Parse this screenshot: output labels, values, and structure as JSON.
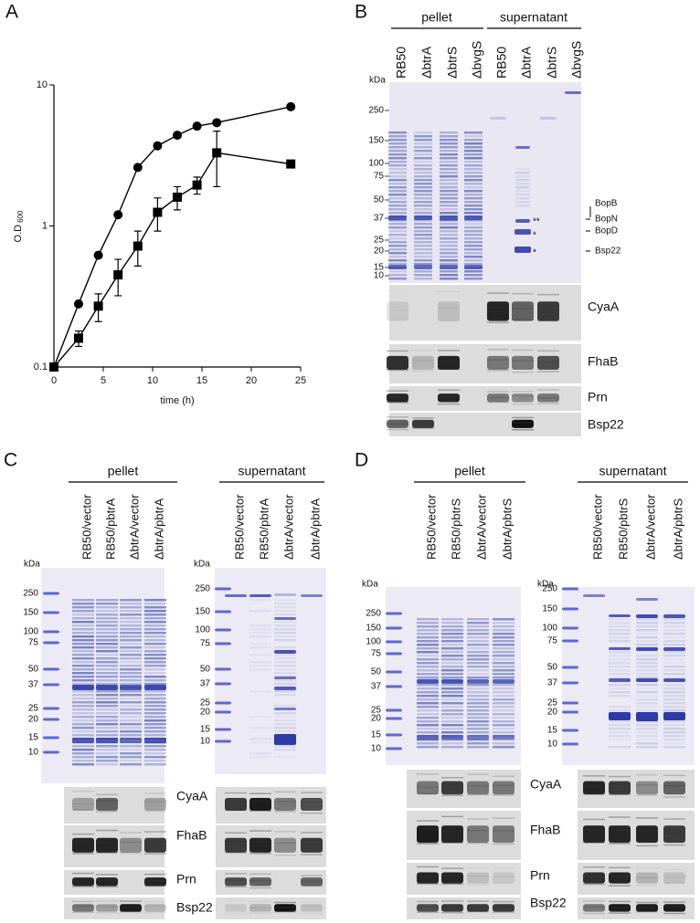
{
  "chart_data": {
    "type": "line",
    "panel_label": "A",
    "xlabel": "time (h)",
    "ylabel": "O.D",
    "ylabel_sub": "600",
    "x": [
      0,
      2.5,
      4.5,
      6.5,
      8.5,
      10.5,
      12.5,
      14.5,
      16.5,
      24
    ],
    "xlim": [
      0,
      25
    ],
    "xticks": [
      0,
      5,
      10,
      15,
      20,
      25
    ],
    "ylim": [
      0.1,
      10
    ],
    "yticks": [
      0.1,
      1,
      10
    ],
    "ylog": true,
    "series": [
      {
        "marker": "circle",
        "color": "#000000",
        "values": [
          0.1,
          0.28,
          0.62,
          1.2,
          2.6,
          3.7,
          4.4,
          5.1,
          5.4,
          7.0
        ]
      },
      {
        "marker": "square",
        "color": "#000000",
        "values": [
          0.1,
          0.16,
          0.27,
          0.45,
          0.72,
          1.25,
          1.6,
          1.95,
          3.3,
          2.75
        ],
        "errors": [
          0,
          0.02,
          0.06,
          0.13,
          0.2,
          0.33,
          0.3,
          0.27,
          1.4,
          0.1
        ]
      }
    ]
  },
  "panel_b": {
    "label": "B",
    "groups": [
      "pellet",
      "supernatant"
    ],
    "lanes": [
      "RB50",
      "ΔbtrA",
      "ΔbtrS",
      "ΔbvgS",
      "RB50",
      "ΔbtrA",
      "ΔbtrS",
      "ΔbvgS"
    ],
    "kda_label": "kDa",
    "markers": [
      250,
      150,
      100,
      75,
      50,
      37,
      25,
      20,
      15,
      10
    ],
    "annotations": [
      "BopB",
      "BopN",
      "BopD",
      "Bsp22"
    ],
    "asterisks": [
      "**",
      "*",
      "*"
    ],
    "blots": [
      "CyaA",
      "FhaB",
      "Prn",
      "Bsp22"
    ]
  },
  "panel_c": {
    "label": "C",
    "gels": [
      {
        "group": "pellet",
        "lanes": [
          "RB50/vector",
          "RB50/pbtrA",
          "ΔbtrA/vector",
          "ΔbtrA/pbtrA"
        ],
        "kda_label": "kDa",
        "markers": [
          250,
          150,
          100,
          75,
          50,
          37,
          25,
          20,
          15,
          10
        ]
      },
      {
        "group": "supernatant",
        "lanes": [
          "RB50/vector",
          "RB50/pbtrA",
          "ΔbtrA/vector",
          "ΔbtrA/pbtrA"
        ],
        "kda_label": "kDa",
        "markers": [
          250,
          150,
          100,
          75,
          50,
          37,
          25,
          20,
          15,
          10
        ]
      }
    ],
    "blots": [
      "CyaA",
      "FhaB",
      "Prn",
      "Bsp22"
    ]
  },
  "panel_d": {
    "label": "D",
    "gels": [
      {
        "group": "pellet",
        "lanes": [
          "RB50/vector",
          "RB50/pbtrS",
          "ΔbtrA/vector",
          "ΔbtrA/pbtrS"
        ],
        "kda_label": "kDa",
        "markers": [
          250,
          150,
          100,
          75,
          50,
          37,
          25,
          20,
          15,
          10
        ]
      },
      {
        "group": "supernatant",
        "lanes": [
          "RB50/vector",
          "RB50/pbtrS",
          "ΔbtrA/vector",
          "ΔbtrA/pbtrS"
        ],
        "kda_label": "kDa",
        "markers": [
          250,
          150,
          100,
          75,
          50,
          37,
          25,
          20,
          15,
          10
        ]
      }
    ],
    "blots": [
      "CyaA",
      "FhaB",
      "Prn",
      "Bsp22"
    ]
  }
}
